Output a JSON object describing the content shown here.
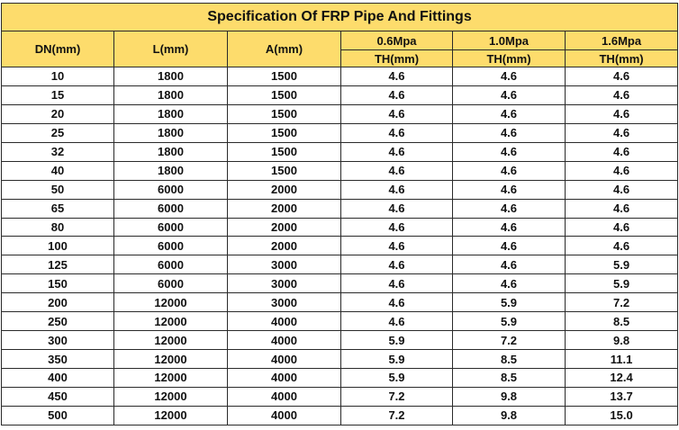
{
  "title": "Specification Of FRP Pipe And Fittings",
  "headers": {
    "dn": "DN(mm)",
    "l": "L(mm)",
    "a": "A(mm)",
    "p1": "0.6Mpa",
    "p2": "1.0Mpa",
    "p3": "1.6Mpa",
    "th": "TH(mm)"
  },
  "rows": [
    [
      "10",
      "1800",
      "1500",
      "4.6",
      "4.6",
      "4.6"
    ],
    [
      "15",
      "1800",
      "1500",
      "4.6",
      "4.6",
      "4.6"
    ],
    [
      "20",
      "1800",
      "1500",
      "4.6",
      "4.6",
      "4.6"
    ],
    [
      "25",
      "1800",
      "1500",
      "4.6",
      "4.6",
      "4.6"
    ],
    [
      "32",
      "1800",
      "1500",
      "4.6",
      "4.6",
      "4.6"
    ],
    [
      "40",
      "1800",
      "1500",
      "4.6",
      "4.6",
      "4.6"
    ],
    [
      "50",
      "6000",
      "2000",
      "4.6",
      "4.6",
      "4.6"
    ],
    [
      "65",
      "6000",
      "2000",
      "4.6",
      "4.6",
      "4.6"
    ],
    [
      "80",
      "6000",
      "2000",
      "4.6",
      "4.6",
      "4.6"
    ],
    [
      "100",
      "6000",
      "2000",
      "4.6",
      "4.6",
      "4.6"
    ],
    [
      "125",
      "6000",
      "3000",
      "4.6",
      "4.6",
      "5.9"
    ],
    [
      "150",
      "6000",
      "3000",
      "4.6",
      "4.6",
      "5.9"
    ],
    [
      "200",
      "12000",
      "3000",
      "4.6",
      "5.9",
      "7.2"
    ],
    [
      "250",
      "12000",
      "4000",
      "4.6",
      "5.9",
      "8.5"
    ],
    [
      "300",
      "12000",
      "4000",
      "5.9",
      "7.2",
      "9.8"
    ],
    [
      "350",
      "12000",
      "4000",
      "5.9",
      "8.5",
      "11.1"
    ],
    [
      "400",
      "12000",
      "4000",
      "5.9",
      "8.5",
      "12.4"
    ],
    [
      "450",
      "12000",
      "4000",
      "7.2",
      "9.8",
      "13.7"
    ],
    [
      "500",
      "12000",
      "4000",
      "7.2",
      "9.8",
      "15.0"
    ]
  ],
  "colors": {
    "header_bg": "#fddc6c",
    "border": "#2a2a2a"
  }
}
